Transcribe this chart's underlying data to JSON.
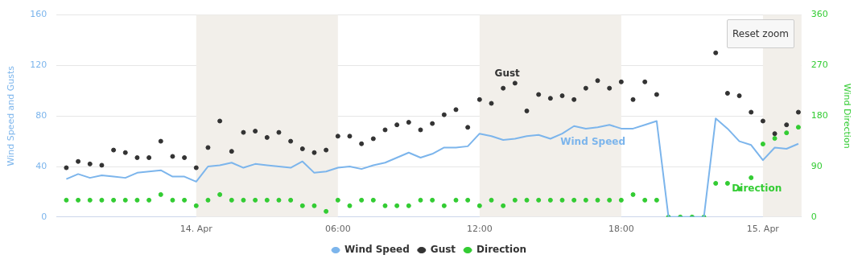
{
  "chart_data": {
    "type": "line",
    "x": [
      "--04-13T18:30",
      "--04-13T19:00",
      "--04-13T19:30",
      "--04-13T20:00",
      "--04-13T20:30",
      "--04-13T21:00",
      "--04-13T21:30",
      "--04-13T22:00",
      "--04-13T22:30",
      "--04-13T23:00",
      "--04-13T23:30",
      "--04-14T00:00",
      "--04-14T00:30",
      "--04-14T01:00",
      "--04-14T01:30",
      "--04-14T02:00",
      "--04-14T02:30",
      "--04-14T03:00",
      "--04-14T03:30",
      "--04-14T04:00",
      "--04-14T04:30",
      "--04-14T05:00",
      "--04-14T05:30",
      "--04-14T06:00",
      "--04-14T06:30",
      "--04-14T07:00",
      "--04-14T07:30",
      "--04-14T08:00",
      "--04-14T08:30",
      "--04-14T09:00",
      "--04-14T09:30",
      "--04-14T10:00",
      "--04-14T10:30",
      "--04-14T11:00",
      "--04-14T11:30",
      "--04-14T12:00",
      "--04-14T12:30",
      "--04-14T13:00",
      "--04-14T13:30",
      "--04-14T14:00",
      "--04-14T14:30",
      "--04-14T15:00",
      "--04-14T15:30",
      "--04-14T16:00",
      "--04-14T16:30",
      "--04-14T17:00",
      "--04-14T17:30",
      "--04-14T18:00",
      "--04-14T18:30",
      "--04-14T19:00",
      "--04-14T19:30",
      "--04-14T20:00",
      "--04-14T20:30",
      "--04-14T21:00",
      "--04-14T21:30",
      "--04-14T22:00",
      "--04-14T22:30",
      "--04-14T23:00",
      "--04-14T23:30",
      "--04-15T00:00",
      "--04-15T00:30",
      "--04-15T01:00",
      "--04-15T01:30"
    ],
    "series": [
      {
        "name": "Wind Speed",
        "type": "line",
        "marker": "none",
        "color": "#7cb5ec",
        "values": [
          30,
          34,
          31,
          33,
          32,
          31,
          35,
          36,
          37,
          32,
          32,
          28,
          40,
          41,
          43,
          39,
          42,
          41,
          40,
          39,
          44,
          35,
          36,
          39,
          40,
          38,
          41,
          43,
          47,
          51,
          47,
          50,
          55,
          55,
          56,
          66,
          64,
          61,
          62,
          64,
          65,
          62,
          66,
          72,
          70,
          71,
          73,
          70,
          70,
          73,
          76,
          0,
          0,
          0,
          0,
          78,
          70,
          60,
          57,
          45,
          55,
          54,
          58
        ]
      },
      {
        "name": "Gust",
        "type": "scatter",
        "marker": "circle",
        "color": "#333333",
        "values": [
          39,
          44,
          42,
          41,
          53,
          51,
          47,
          47,
          60,
          48,
          47,
          39,
          55,
          76,
          52,
          67,
          68,
          63,
          67,
          60,
          54,
          51,
          53,
          64,
          64,
          58,
          62,
          69,
          73,
          75,
          69,
          74,
          81,
          85,
          71,
          93,
          90,
          102,
          106,
          84,
          97,
          94,
          96,
          93,
          102,
          108,
          102,
          107,
          93,
          107,
          97,
          null,
          null,
          null,
          null,
          130,
          98,
          96,
          83,
          76,
          66,
          73,
          83
        ]
      },
      {
        "name": "Direction",
        "type": "scatter",
        "marker": "circle",
        "axis": "y2",
        "color": "#33cc33",
        "values": [
          30,
          30,
          30,
          30,
          30,
          30,
          30,
          30,
          40,
          30,
          30,
          20,
          30,
          40,
          30,
          30,
          30,
          30,
          30,
          30,
          20,
          20,
          10,
          30,
          20,
          30,
          30,
          20,
          20,
          20,
          30,
          30,
          20,
          30,
          30,
          20,
          30,
          20,
          30,
          30,
          30,
          30,
          30,
          30,
          30,
          30,
          30,
          30,
          40,
          30,
          30,
          0,
          0,
          0,
          0,
          60,
          60,
          50,
          70,
          130,
          140,
          150,
          160
        ]
      }
    ],
    "xlim": [
      "--04-13T18:05",
      "--04-15T01:38"
    ],
    "xticks": [
      {
        "value": "--04-14T00:00",
        "label": "14. Apr"
      },
      {
        "value": "--04-14T06:00",
        "label": "06:00"
      },
      {
        "value": "--04-14T12:00",
        "label": "12:00"
      },
      {
        "value": "--04-14T18:00",
        "label": "18:00"
      },
      {
        "value": "--04-15T00:00",
        "label": "15. Apr"
      }
    ],
    "ylim": [
      0,
      160
    ],
    "yticks": [
      0,
      40,
      80,
      120,
      160
    ],
    "y2lim": [
      0,
      360
    ],
    "y2ticks": [
      0,
      90,
      180,
      270,
      360
    ],
    "ylabel": "Wind Speed and Gusts",
    "y2label": "Wind Direction",
    "bands": [
      {
        "axis": "x",
        "from": "--04-14T00:00",
        "to": "--04-14T06:00",
        "color": "#f2efea"
      },
      {
        "axis": "x",
        "from": "--04-14T12:00",
        "to": "--04-14T18:00",
        "color": "#f2efea"
      },
      {
        "axis": "x",
        "from": "--04-15T00:00",
        "to": "--04-15T01:38",
        "color": "#f2efea"
      }
    ],
    "annotations": [
      "Reset zoom"
    ],
    "grid": "y",
    "legend": "bottom"
  }
}
